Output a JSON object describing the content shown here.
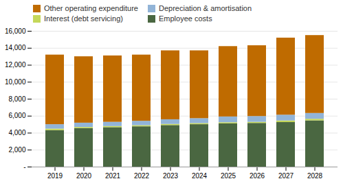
{
  "chart_data": {
    "type": "bar",
    "stacked": true,
    "categories": [
      "2019",
      "2020",
      "2021",
      "2022",
      "2023",
      "2024",
      "2025",
      "2026",
      "2027",
      "2028"
    ],
    "series": [
      {
        "name": "Employee costs",
        "color": "#4a6741",
        "values": [
          4300,
          4550,
          4650,
          4750,
          4900,
          5000,
          5100,
          5150,
          5250,
          5450
        ]
      },
      {
        "name": "Interest (debt servicing)",
        "color": "#c5d85a",
        "values": [
          180,
          130,
          130,
          130,
          130,
          130,
          130,
          130,
          190,
          190
        ]
      },
      {
        "name": "Depreciation & amortisation",
        "color": "#92b4d7",
        "values": [
          520,
          500,
          500,
          520,
          550,
          580,
          680,
          680,
          680,
          680
        ]
      },
      {
        "name": "Other operating expenditure",
        "color": "#bf6b00",
        "values": [
          8200,
          7820,
          7820,
          7800,
          8120,
          7990,
          8290,
          8340,
          9080,
          9180
        ]
      }
    ],
    "ylim": [
      0,
      16000
    ],
    "yticks": [
      {
        "value": 0,
        "label": "-"
      },
      {
        "value": 2000,
        "label": "2,000"
      },
      {
        "value": 4000,
        "label": "4,000"
      },
      {
        "value": 6000,
        "label": "6,000"
      },
      {
        "value": 8000,
        "label": "8,000"
      },
      {
        "value": 10000,
        "label": "10,000"
      },
      {
        "value": 12000,
        "label": "12,000"
      },
      {
        "value": 14000,
        "label": "14,000"
      },
      {
        "value": 16000,
        "label": "16,000"
      }
    ],
    "grid": true,
    "legend": "top"
  }
}
